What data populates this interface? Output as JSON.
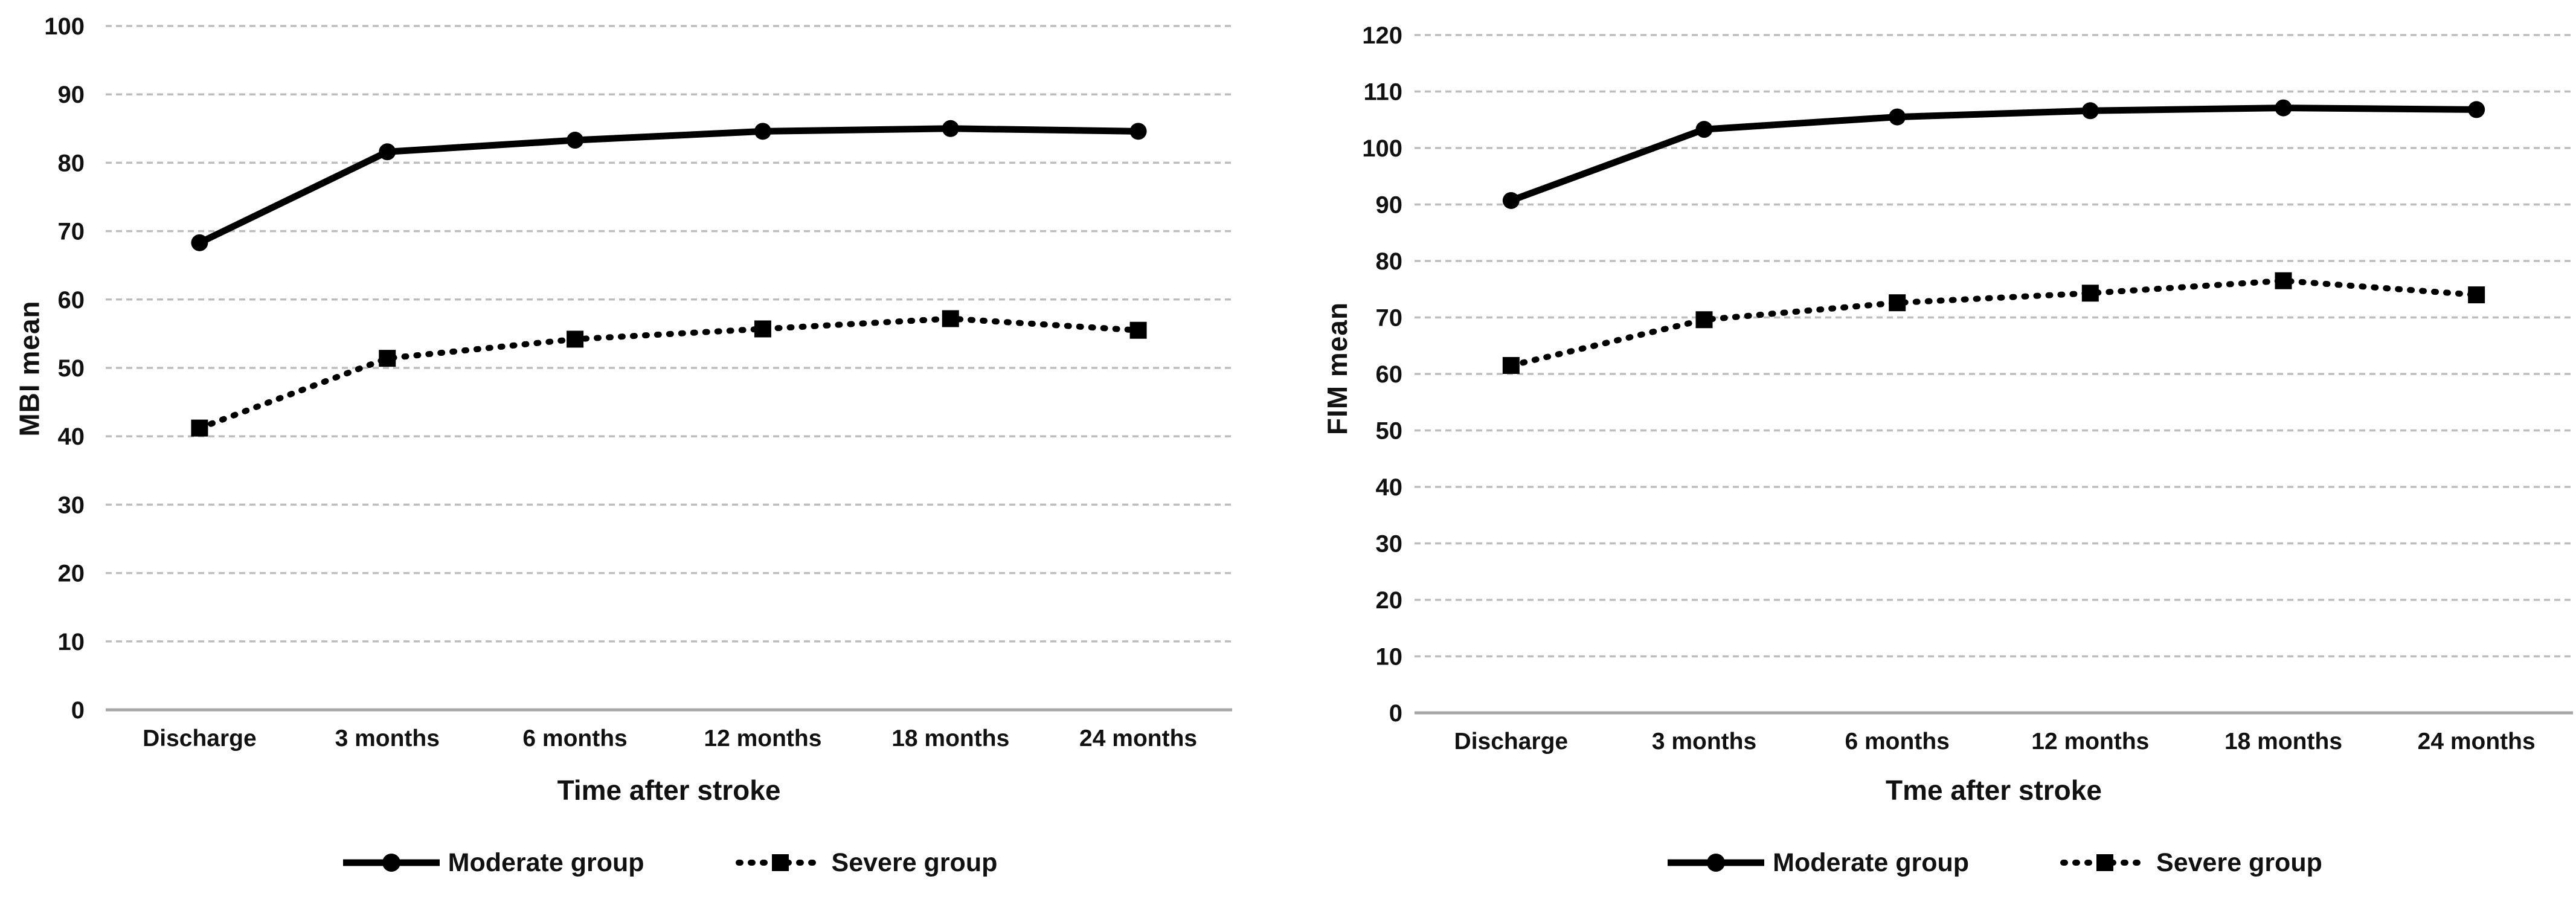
{
  "page": {
    "background_color": "#ffffff",
    "series_color": "#000000",
    "gridline_color": "#bdbdbd",
    "axis_line_color": "#a6a6a6"
  },
  "legend_icons": {
    "moderate": "solid-line-circle-marker-icon",
    "severe": "dotted-line-square-marker-icon"
  },
  "chart_data": [
    {
      "type": "line",
      "ylabel": "MBI mean",
      "xlabel": "Time after stroke",
      "ylim": [
        0,
        100
      ],
      "ytick_step": 10,
      "ytick_labels": [
        "0",
        "10",
        "20",
        "30",
        "40",
        "50",
        "60",
        "70",
        "80",
        "90",
        "100"
      ],
      "grid": true,
      "legend_position": "bottom-center",
      "categories": [
        "Discharge",
        "3 months",
        "6 months",
        "12 months",
        "18 months",
        "24 months"
      ],
      "series": [
        {
          "name": "Moderate group",
          "line": "solid",
          "marker": "circle",
          "values": [
            68.3,
            81.6,
            83.3,
            84.6,
            85.0,
            84.6
          ]
        },
        {
          "name": "Severe group",
          "line": "dotted",
          "marker": "square",
          "values": [
            41.2,
            51.4,
            54.2,
            55.7,
            57.2,
            55.5
          ]
        }
      ]
    },
    {
      "type": "line",
      "ylabel": "FIM mean",
      "xlabel": "Tme after stroke",
      "ylim": [
        0,
        120
      ],
      "ytick_step": 10,
      "ytick_labels": [
        "0",
        "10",
        "20",
        "30",
        "40",
        "50",
        "60",
        "70",
        "80",
        "90",
        "100",
        "110",
        "120"
      ],
      "grid": true,
      "legend_position": "bottom-center",
      "categories": [
        "Discharge",
        "3 months",
        "6 months",
        "12 months",
        "18 months",
        "24 months"
      ],
      "series": [
        {
          "name": "Moderate group",
          "line": "solid",
          "marker": "circle",
          "values": [
            90.7,
            103.3,
            105.5,
            106.6,
            107.1,
            106.8
          ]
        },
        {
          "name": "Severe group",
          "line": "dotted",
          "marker": "square",
          "values": [
            61.5,
            69.6,
            72.6,
            74.3,
            76.5,
            74.0
          ]
        }
      ]
    }
  ]
}
